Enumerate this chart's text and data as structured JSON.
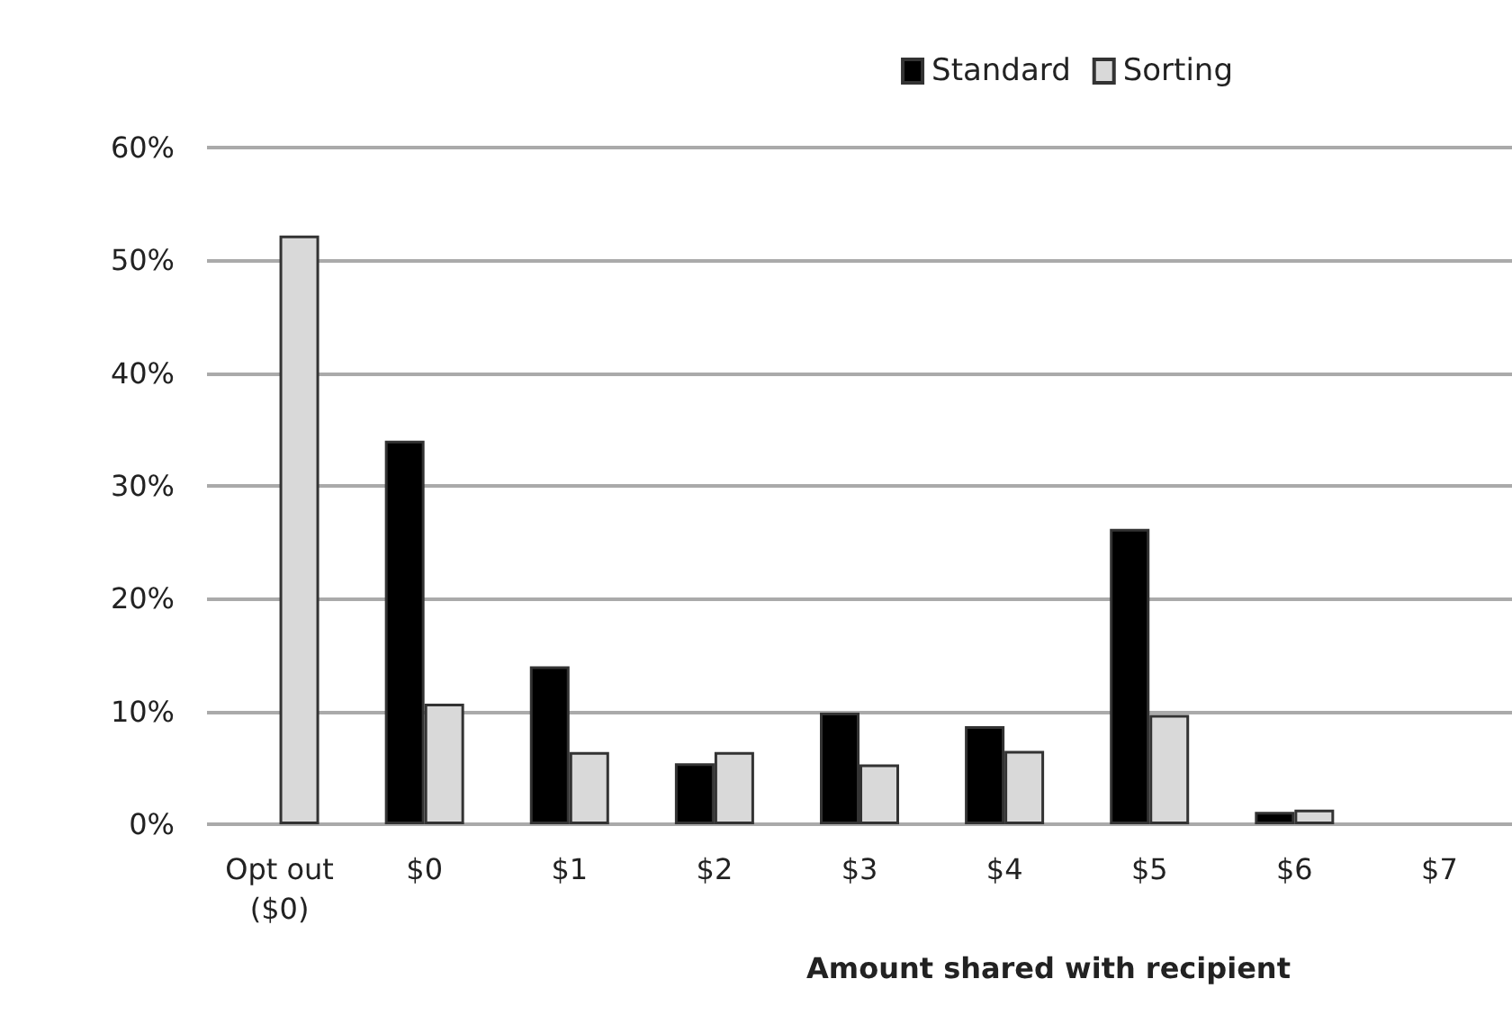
{
  "chart_data": {
    "type": "bar",
    "xlabel": "Amount shared with recipient",
    "categories": [
      "Opt out\n($0)",
      "$0",
      "$1",
      "$2",
      "$3",
      "$4",
      "$5",
      "$6",
      "$7"
    ],
    "series": [
      {
        "name": "Standard",
        "color": "#000000",
        "values": [
          0,
          34,
          14,
          5.4,
          9.9,
          8.7,
          26.2,
          1.1,
          0
        ]
      },
      {
        "name": "Sorting",
        "color": "#d9d9d9",
        "values": [
          52.2,
          10.7,
          6.4,
          6.4,
          5.3,
          6.5,
          9.7,
          1.3,
          0
        ]
      }
    ],
    "ylim": [
      0,
      60
    ],
    "yticks": [
      {
        "value": 0,
        "label": "0%"
      },
      {
        "value": 10,
        "label": "10%"
      },
      {
        "value": 20,
        "label": "20%"
      },
      {
        "value": 30,
        "label": "30%"
      },
      {
        "value": 40,
        "label": "40%"
      },
      {
        "value": 50,
        "label": "50%"
      },
      {
        "value": 60,
        "label": "60%"
      }
    ],
    "grid": "y",
    "legend": "top right"
  }
}
